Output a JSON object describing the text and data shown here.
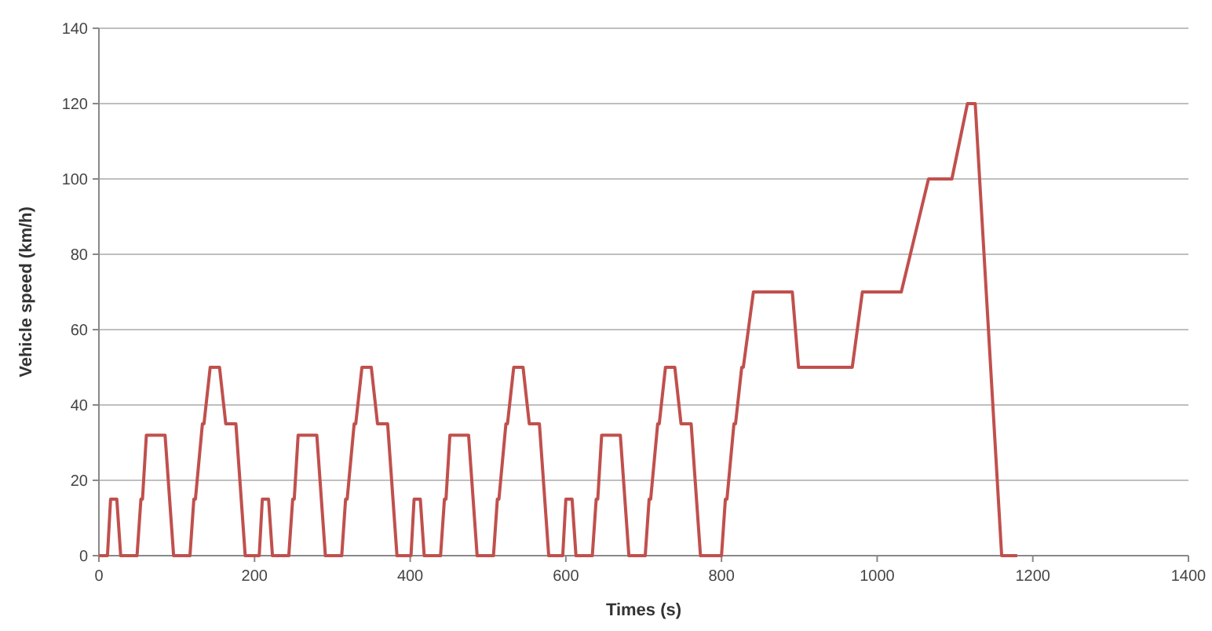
{
  "chart_data": {
    "type": "line",
    "xlabel": "Times (s)",
    "ylabel": "Vehicle speed (km/h)",
    "xlim": [
      0,
      1400
    ],
    "xticks": [
      0,
      200,
      400,
      600,
      800,
      1000,
      1200,
      1400
    ],
    "ylim": [
      0,
      140
    ],
    "yticks": [
      0,
      20,
      40,
      60,
      80,
      100,
      120,
      140
    ],
    "grid": "y",
    "marker": "none",
    "line_style": "solid",
    "series": [
      {
        "color": "#c0504d",
        "x": [
          0,
          11,
          15,
          23,
          28,
          49,
          54,
          56,
          61,
          85,
          96,
          117,
          122,
          124,
          133,
          135,
          143,
          155,
          163,
          176,
          188,
          195,
          206,
          210,
          218,
          223,
          244,
          249,
          251,
          256,
          280,
          291,
          312,
          317,
          319,
          328,
          330,
          338,
          350,
          358,
          371,
          383,
          390,
          401,
          405,
          413,
          418,
          439,
          444,
          446,
          451,
          475,
          486,
          507,
          512,
          514,
          523,
          525,
          533,
          545,
          553,
          566,
          578,
          585,
          596,
          600,
          608,
          613,
          634,
          639,
          641,
          646,
          670,
          681,
          702,
          707,
          709,
          718,
          720,
          728,
          740,
          748,
          761,
          773,
          780,
          800,
          805,
          807,
          816,
          818,
          826,
          828,
          841,
          891,
          899,
          968,
          981,
          1031,
          1066,
          1096,
          1116,
          1126,
          1160,
          1180
        ],
        "values": [
          0,
          0,
          15,
          15,
          0,
          0,
          15,
          15,
          32,
          32,
          0,
          0,
          15,
          15,
          35,
          35,
          50,
          50,
          35,
          35,
          0,
          0,
          0,
          15,
          15,
          0,
          0,
          15,
          15,
          32,
          32,
          0,
          0,
          15,
          15,
          35,
          35,
          50,
          50,
          35,
          35,
          0,
          0,
          0,
          15,
          15,
          0,
          0,
          15,
          15,
          32,
          32,
          0,
          0,
          15,
          15,
          35,
          35,
          50,
          50,
          35,
          35,
          0,
          0,
          0,
          15,
          15,
          0,
          0,
          15,
          15,
          32,
          32,
          0,
          0,
          15,
          15,
          35,
          35,
          50,
          50,
          35,
          35,
          0,
          0,
          0,
          15,
          15,
          35,
          35,
          50,
          50,
          70,
          70,
          50,
          50,
          70,
          70,
          100,
          100,
          120,
          120,
          0,
          0
        ]
      }
    ]
  }
}
